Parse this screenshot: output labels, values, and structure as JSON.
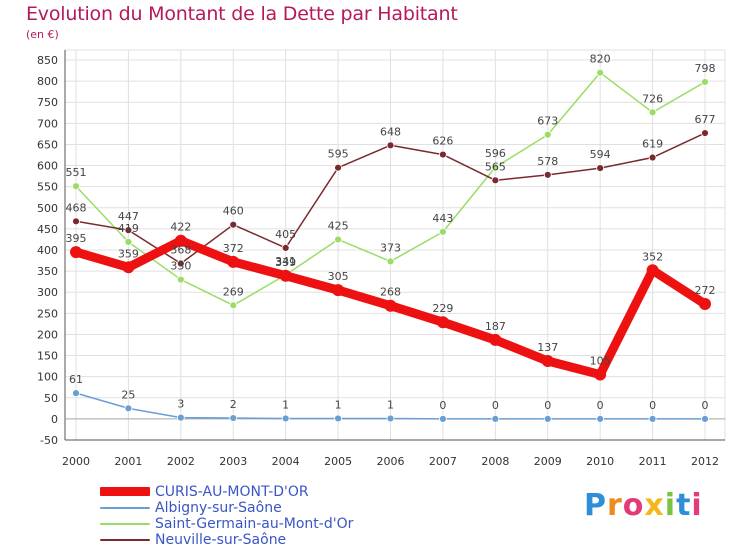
{
  "header": {
    "title": "Evolution du Montant de la Dette par Habitant",
    "subtitle": "(en €)"
  },
  "logo": {
    "text": "Proxiti"
  },
  "colors": {
    "title": "#b5195a",
    "legend_text": "#3a56c6",
    "axis": "#555555",
    "grid": "#e0e0e0"
  },
  "chart_data": {
    "type": "line",
    "x": [
      "2000",
      "2001",
      "2002",
      "2003",
      "2004",
      "2005",
      "2006",
      "2007",
      "2008",
      "2009",
      "2010",
      "2011",
      "2012"
    ],
    "ylim": [
      -50,
      850
    ],
    "yticks": [
      -50,
      0,
      50,
      100,
      150,
      200,
      250,
      300,
      350,
      400,
      450,
      500,
      550,
      600,
      650,
      700,
      750,
      800,
      850
    ],
    "grid": true,
    "legend_position": "bottom-left",
    "series": [
      {
        "name": "CURIS-AU-MONT-D'OR",
        "color": "#ee1111",
        "values": [
          395,
          359,
          422,
          372,
          339,
          305,
          268,
          229,
          187,
          137,
          105,
          352,
          272
        ],
        "labels": [
          "395",
          "359",
          "422",
          "372",
          "339",
          "305",
          "268",
          "229",
          "187",
          "137",
          "105",
          "352",
          "272"
        ]
      },
      {
        "name": "Albigny-sur-Saône",
        "color": "#6a9fd4",
        "values": [
          61,
          25,
          3,
          2,
          1,
          1,
          1,
          0,
          0,
          0,
          0,
          0,
          0
        ],
        "labels": [
          "61",
          "25",
          "3",
          "2",
          "1",
          "1",
          "1",
          "0",
          "0",
          "0",
          "0",
          "0",
          "0"
        ]
      },
      {
        "name": "Saint-Germain-au-Mont-d'Or",
        "color": "#99dd66",
        "values": [
          551,
          419,
          330,
          269,
          341,
          425,
          373,
          443,
          596,
          673,
          820,
          726,
          798
        ],
        "labels": [
          "551",
          "419",
          "330",
          "269",
          "341",
          "425",
          "373",
          "443",
          "596",
          "673",
          "820",
          "726",
          "798"
        ]
      },
      {
        "name": "Neuville-sur-Saône",
        "color": "#7a2a2e",
        "values": [
          468,
          447,
          368,
          460,
          405,
          595,
          648,
          626,
          565,
          578,
          594,
          619,
          677
        ],
        "labels": [
          "468",
          "447",
          "368",
          "460",
          "405",
          "595",
          "648",
          "626",
          "565",
          "578",
          "594",
          "619",
          "677"
        ]
      }
    ]
  }
}
